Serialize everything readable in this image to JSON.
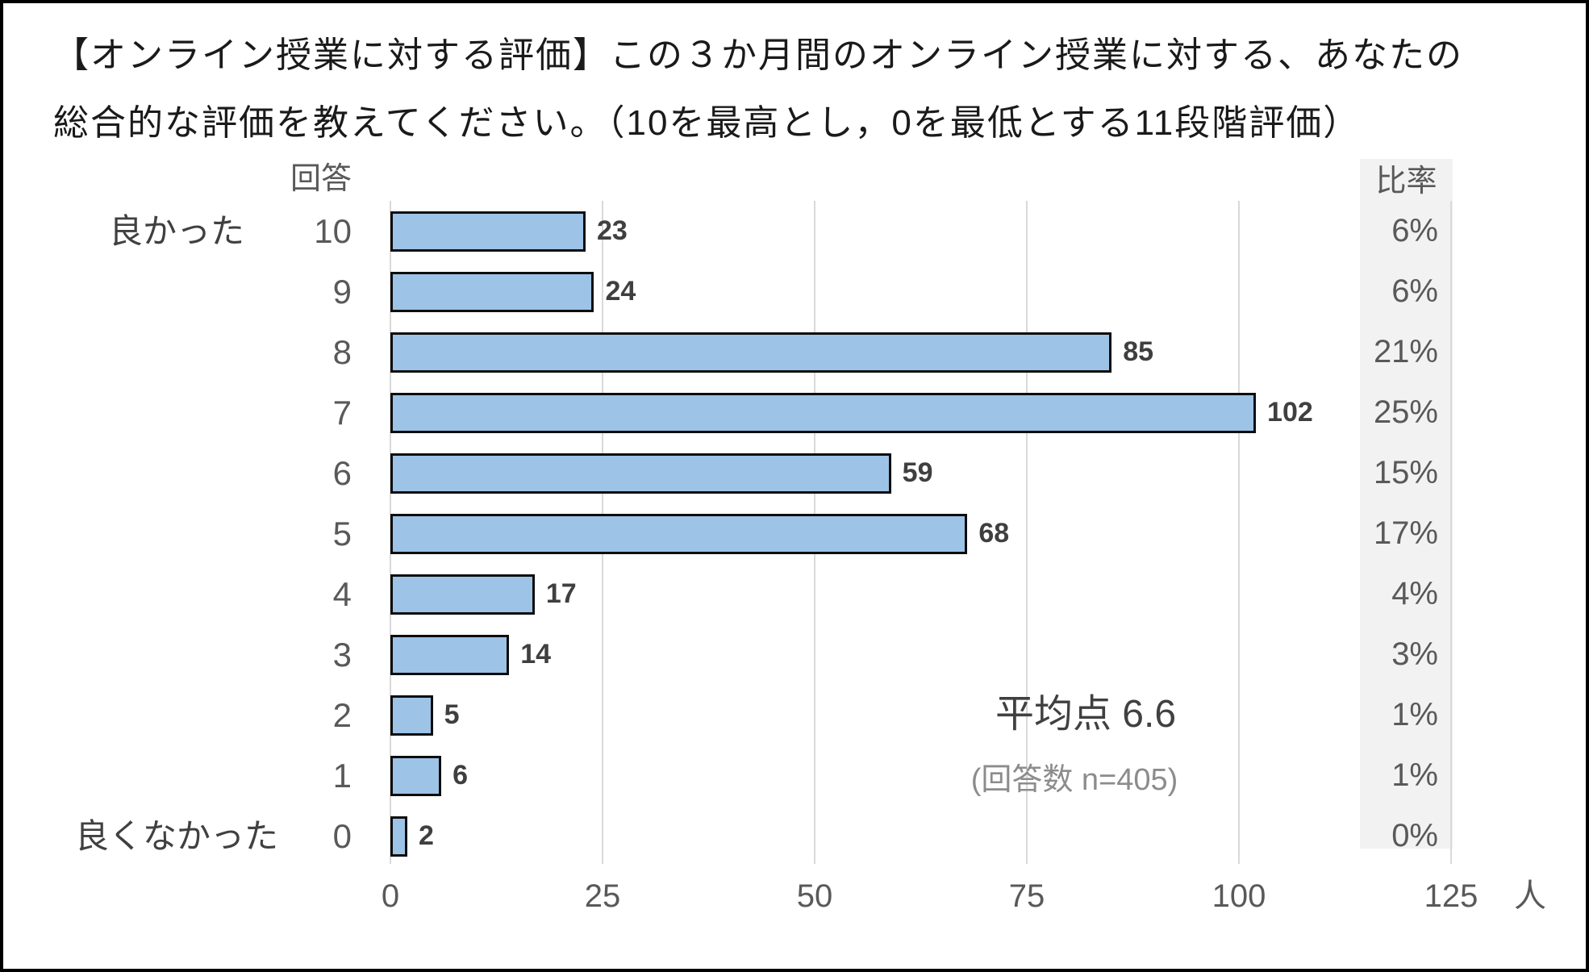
{
  "title": {
    "line1": "【オンライン授業に対する評価】この３か月間のオンライン授業に対する、あなたの",
    "line2": "総合的な評価を教えてください。（10を最高とし，0を最低とする11段階評価）"
  },
  "chart_data": {
    "type": "bar",
    "orientation": "horizontal",
    "col_header_left": "回答",
    "col_header_right": "比率",
    "scale_label_top": "良かった",
    "scale_label_bottom": "良くなかった",
    "categories": [
      "10",
      "9",
      "8",
      "7",
      "6",
      "5",
      "4",
      "3",
      "2",
      "1",
      "0"
    ],
    "values": [
      23,
      24,
      85,
      102,
      59,
      68,
      17,
      14,
      5,
      6,
      2
    ],
    "percentages": [
      "6%",
      "6%",
      "21%",
      "25%",
      "15%",
      "17%",
      "4%",
      "3%",
      "1%",
      "1%",
      "0%"
    ],
    "x_ticks": [
      0,
      25,
      50,
      75,
      100,
      125
    ],
    "x_unit": "人",
    "xlim": [
      0,
      125
    ],
    "grid": true,
    "legend": "none",
    "annotation": {
      "mean_label": "平均点 6.6",
      "n_label": "(回答数 n=405)"
    },
    "colors": {
      "bar_fill": "#9DC3E6",
      "bar_border": "#0d0d0d",
      "gridline": "#D9D9D9",
      "ratio_panel_bg": "#F2F2F2"
    }
  }
}
